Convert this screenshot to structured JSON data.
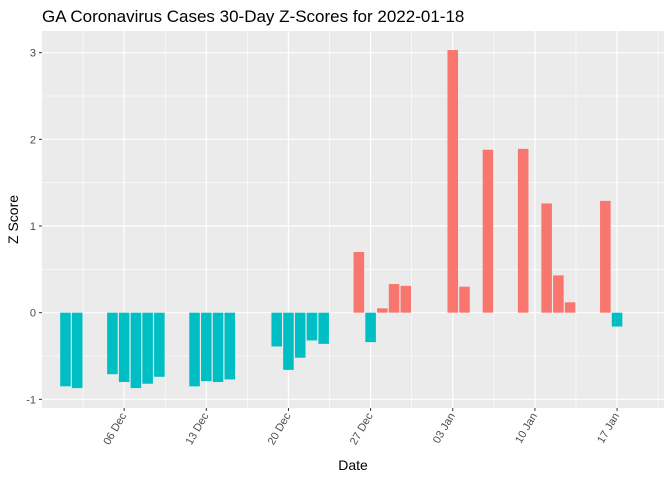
{
  "chart_data": {
    "type": "bar",
    "title": "GA Coronavirus Cases 30-Day Z-Scores for 2022-01-18",
    "xlabel": "Date",
    "ylabel": "Z Score",
    "ylim": [
      -1.1,
      3.25
    ],
    "xlim": [
      "2021-11-29",
      "2022-01-21"
    ],
    "y_ticks": [
      -1,
      0,
      1,
      2,
      3
    ],
    "x_ticks": [
      {
        "date": "2021-12-06",
        "label": "06 Dec"
      },
      {
        "date": "2021-12-13",
        "label": "13 Dec"
      },
      {
        "date": "2021-12-20",
        "label": "20 Dec"
      },
      {
        "date": "2021-12-27",
        "label": "27 Dec"
      },
      {
        "date": "2022-01-03",
        "label": "03 Jan"
      },
      {
        "date": "2022-01-10",
        "label": "10 Jan"
      },
      {
        "date": "2022-01-17",
        "label": "17 Jan"
      }
    ],
    "x_tick_label_rotation": -60,
    "grid": true,
    "legend": "none",
    "colors": {
      "positive": "#F8766D",
      "negative": "#00BFC4",
      "panel": "#EBEBEB",
      "grid": "#FFFFFF"
    },
    "bars": [
      {
        "date": "2021-12-01",
        "value": -0.85
      },
      {
        "date": "2021-12-02",
        "value": -0.87
      },
      {
        "date": "2021-12-05",
        "value": -0.71
      },
      {
        "date": "2021-12-06",
        "value": -0.8
      },
      {
        "date": "2021-12-07",
        "value": -0.87
      },
      {
        "date": "2021-12-08",
        "value": -0.82
      },
      {
        "date": "2021-12-09",
        "value": -0.74
      },
      {
        "date": "2021-12-12",
        "value": -0.85
      },
      {
        "date": "2021-12-13",
        "value": -0.79
      },
      {
        "date": "2021-12-14",
        "value": -0.8
      },
      {
        "date": "2021-12-15",
        "value": -0.77
      },
      {
        "date": "2021-12-19",
        "value": -0.39
      },
      {
        "date": "2021-12-20",
        "value": -0.66
      },
      {
        "date": "2021-12-21",
        "value": -0.52
      },
      {
        "date": "2021-12-22",
        "value": -0.32
      },
      {
        "date": "2021-12-23",
        "value": -0.36
      },
      {
        "date": "2021-12-26",
        "value": 0.7
      },
      {
        "date": "2021-12-27",
        "value": -0.34
      },
      {
        "date": "2021-12-28",
        "value": 0.05
      },
      {
        "date": "2021-12-29",
        "value": 0.33
      },
      {
        "date": "2021-12-30",
        "value": 0.31
      },
      {
        "date": "2022-01-03",
        "value": 3.03
      },
      {
        "date": "2022-01-04",
        "value": 0.3
      },
      {
        "date": "2022-01-06",
        "value": 1.88
      },
      {
        "date": "2022-01-09",
        "value": 1.89
      },
      {
        "date": "2022-01-11",
        "value": 1.26
      },
      {
        "date": "2022-01-12",
        "value": 0.43
      },
      {
        "date": "2022-01-13",
        "value": 0.12
      },
      {
        "date": "2022-01-16",
        "value": 1.29
      },
      {
        "date": "2022-01-17",
        "value": -0.16
      }
    ]
  }
}
